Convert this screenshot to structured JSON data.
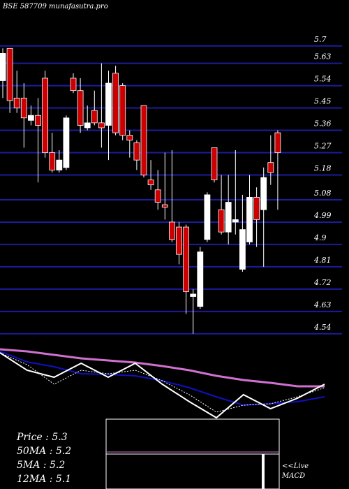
{
  "chart_data": [
    {
      "type": "candlestick",
      "title": "BSE 587709 munafasutra.pro",
      "up_color": "#ffffff",
      "down_color": "#cc0000",
      "grid": true,
      "grid_color": "#1c1c9c",
      "ylim": [
        4.5,
        5.75
      ],
      "yticks": [
        5.7,
        5.63,
        5.54,
        5.45,
        5.36,
        5.27,
        5.18,
        5.08,
        4.99,
        4.9,
        4.81,
        4.72,
        4.63,
        4.54
      ],
      "open": [
        5.56,
        5.69,
        5.49,
        5.49,
        5.4,
        5.42,
        5.57,
        5.27,
        5.2,
        5.21,
        5.57,
        5.52,
        5.37,
        5.44,
        5.39,
        5.38,
        5.59,
        5.54,
        5.34,
        5.31,
        5.46,
        5.16,
        5.12,
        5.06,
        4.99,
        4.97,
        4.97,
        4.69,
        4.65,
        4.92,
        5.29,
        5.04,
        4.95,
        4.99,
        4.8,
        4.91,
        5.09,
        5.04,
        5.23,
        5.35
      ],
      "high": [
        5.69,
        5.69,
        5.6,
        5.55,
        5.46,
        5.49,
        5.6,
        5.35,
        5.28,
        5.42,
        5.59,
        5.57,
        5.46,
        5.52,
        5.63,
        5.6,
        5.62,
        5.55,
        5.36,
        5.32,
        5.46,
        5.24,
        5.2,
        5.27,
        5.28,
        4.99,
        4.98,
        4.72,
        4.89,
        5.11,
        5.29,
        5.18,
        5.18,
        5.28,
        5.1,
        5.18,
        5.13,
        5.21,
        5.34,
        5.36
      ],
      "low": [
        5.49,
        5.43,
        5.43,
        5.29,
        5.38,
        5.15,
        5.25,
        5.19,
        5.19,
        5.2,
        5.51,
        5.35,
        5.36,
        5.38,
        5.29,
        5.24,
        5.34,
        5.32,
        5.25,
        5.2,
        5.17,
        5.12,
        5.04,
        5.0,
        4.91,
        4.82,
        4.62,
        4.54,
        4.64,
        4.91,
        5.15,
        4.94,
        4.9,
        4.94,
        4.79,
        4.9,
        4.89,
        4.81,
        5.14,
        5.04
      ],
      "close": [
        5.67,
        5.48,
        5.45,
        5.41,
        5.42,
        5.38,
        5.27,
        5.2,
        5.24,
        5.41,
        5.52,
        5.38,
        5.39,
        5.39,
        5.37,
        5.55,
        5.35,
        5.34,
        5.32,
        5.24,
        5.18,
        5.14,
        5.07,
        5.05,
        4.92,
        4.86,
        4.71,
        4.7,
        4.87,
        5.1,
        5.16,
        4.95,
        5.07,
        5.0,
        4.96,
        5.09,
        5.0,
        5.17,
        5.19,
        5.27
      ]
    },
    {
      "type": "line",
      "xlim": [
        0,
        12
      ],
      "ylim": [
        0,
        105
      ],
      "x": [
        0,
        1,
        2,
        3,
        4,
        5,
        6,
        7,
        8,
        9,
        10,
        11,
        12
      ],
      "series": [
        {
          "color": "#d070d0",
          "values": [
            100,
            97,
            92,
            87,
            84,
            81,
            76,
            70,
            62,
            56,
            52,
            47,
            47
          ]
        },
        {
          "color": "#1010c0",
          "values": [
            97,
            82,
            75,
            65,
            64,
            62,
            55,
            45,
            32,
            20,
            22,
            25,
            32
          ]
        },
        {
          "color": "#ffffff",
          "values": [
            95,
            70,
            60,
            80,
            60,
            80,
            50,
            25,
            2,
            35,
            15,
            30,
            50
          ]
        },
        {
          "color": "#ffffff",
          "dashed": true,
          "values": [
            95,
            78,
            50,
            70,
            65,
            70,
            55,
            35,
            10,
            20,
            22,
            32,
            45
          ]
        }
      ],
      "info": [
        "Price   : 5.3",
        "50MA : 5.2",
        "5MA : 5.2",
        "12MA : 5.1"
      ],
      "live": "<<Live",
      "macd": "MACD"
    }
  ]
}
